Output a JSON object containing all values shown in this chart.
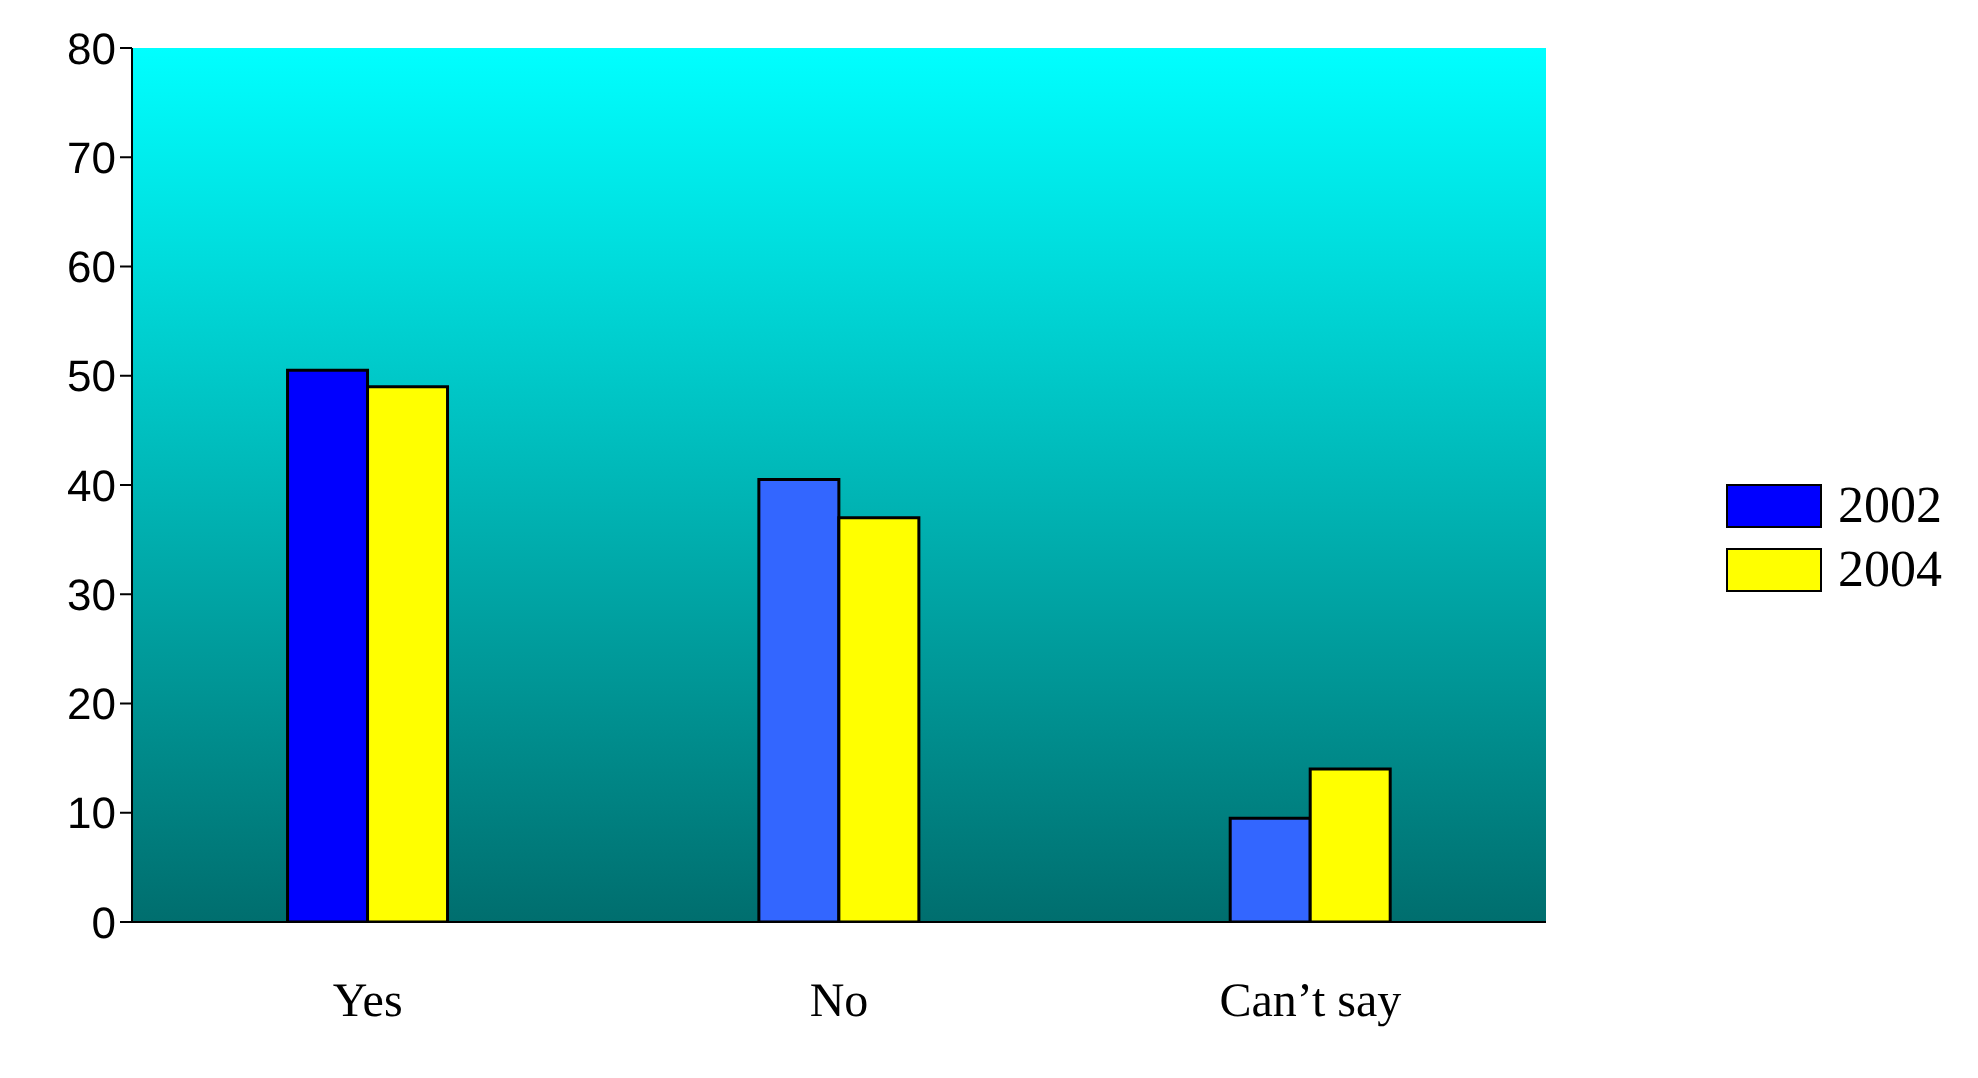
{
  "chart_data": {
    "type": "bar",
    "categories": [
      "Yes",
      "No",
      "Can’t say"
    ],
    "series": [
      {
        "name": "2002",
        "color": "#0000ff",
        "colors": [
          "#0000ff",
          "#3366ff",
          "#3366ff"
        ],
        "values": [
          50.5,
          40.5,
          9.5
        ]
      },
      {
        "name": "2004",
        "color": "#ffff00",
        "values": [
          49,
          37,
          14
        ]
      }
    ],
    "ylim": [
      0,
      80
    ],
    "yticks": [
      0,
      10,
      20,
      30,
      40,
      50,
      60,
      70,
      80
    ],
    "grid": false,
    "legend": "right"
  }
}
